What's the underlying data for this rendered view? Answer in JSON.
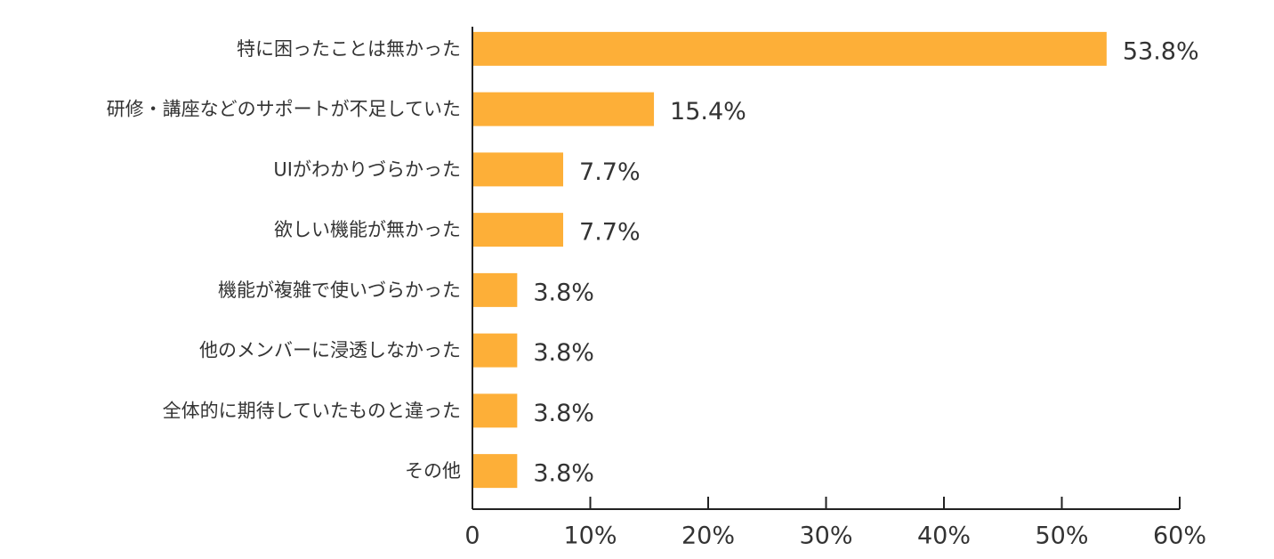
{
  "chart_data": {
    "type": "bar",
    "orientation": "horizontal",
    "categories": [
      "特に困ったことは無かった",
      "研修・講座などのサポートが不足していた",
      "UIがわかりづらかった",
      "欲しい機能が無かった",
      "機能が複雑で使いづらかった",
      "他のメンバーに浸透しなかった",
      "全体的に期待していたものと違った",
      "その他"
    ],
    "values": [
      53.8,
      15.4,
      7.7,
      7.7,
      3.8,
      3.8,
      3.8,
      3.8
    ],
    "value_labels": [
      "53.8%",
      "15.4%",
      "7.7%",
      "7.7%",
      "3.8%",
      "3.8%",
      "3.8%",
      "3.8%"
    ],
    "xlim": [
      0,
      60
    ],
    "x_ticks": [
      0,
      10,
      20,
      30,
      40,
      50,
      60
    ],
    "x_tick_labels": [
      "0",
      "10%",
      "20%",
      "30%",
      "40%",
      "50%",
      "60%"
    ],
    "grid": false,
    "bar_color": "#FDAF38",
    "title": "",
    "xlabel": "",
    "ylabel": ""
  }
}
